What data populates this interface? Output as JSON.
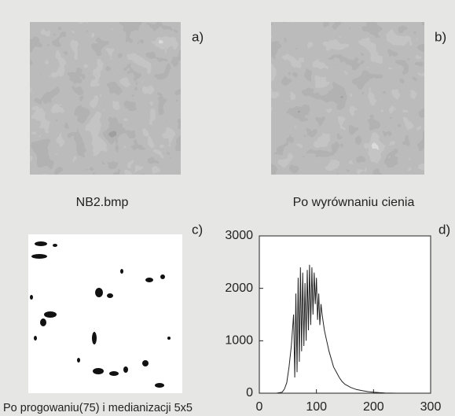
{
  "panels": [
    {
      "label": "a)",
      "caption": "NB2.bmp"
    },
    {
      "label": "b)",
      "caption": "Po wyrównaniu cienia"
    },
    {
      "label": "c)",
      "caption": "Po progowaniu(75) i medianizacji 5x5"
    },
    {
      "label": "d)"
    }
  ],
  "chart_data": {
    "type": "line",
    "color": "#222222",
    "x": [
      0,
      30,
      40,
      44,
      48,
      52,
      56,
      60,
      62,
      64,
      66,
      68,
      70,
      72,
      74,
      76,
      78,
      80,
      82,
      84,
      86,
      88,
      90,
      92,
      94,
      96,
      98,
      100,
      102,
      104,
      106,
      108,
      110,
      114,
      118,
      122,
      126,
      130,
      135,
      140,
      145,
      150,
      160,
      170,
      180,
      190,
      200,
      210,
      220,
      240,
      255,
      300
    ],
    "values": [
      0,
      0,
      20,
      80,
      200,
      500,
      900,
      1500,
      300,
      1900,
      400,
      2200,
      600,
      2400,
      800,
      2300,
      900,
      2100,
      1000,
      2350,
      1200,
      2450,
      1300,
      2400,
      1500,
      2300,
      1700,
      2200,
      1400,
      1900,
      1300,
      1700,
      1500,
      1200,
      1000,
      800,
      650,
      500,
      400,
      300,
      220,
      170,
      110,
      70,
      50,
      30,
      20,
      10,
      5,
      0,
      0,
      0
    ],
    "xlim": [
      0,
      300
    ],
    "ylim": [
      0,
      3000
    ],
    "xticks": [
      0,
      100,
      200,
      300
    ],
    "yticks": [
      0,
      1000,
      2000,
      3000
    ]
  }
}
